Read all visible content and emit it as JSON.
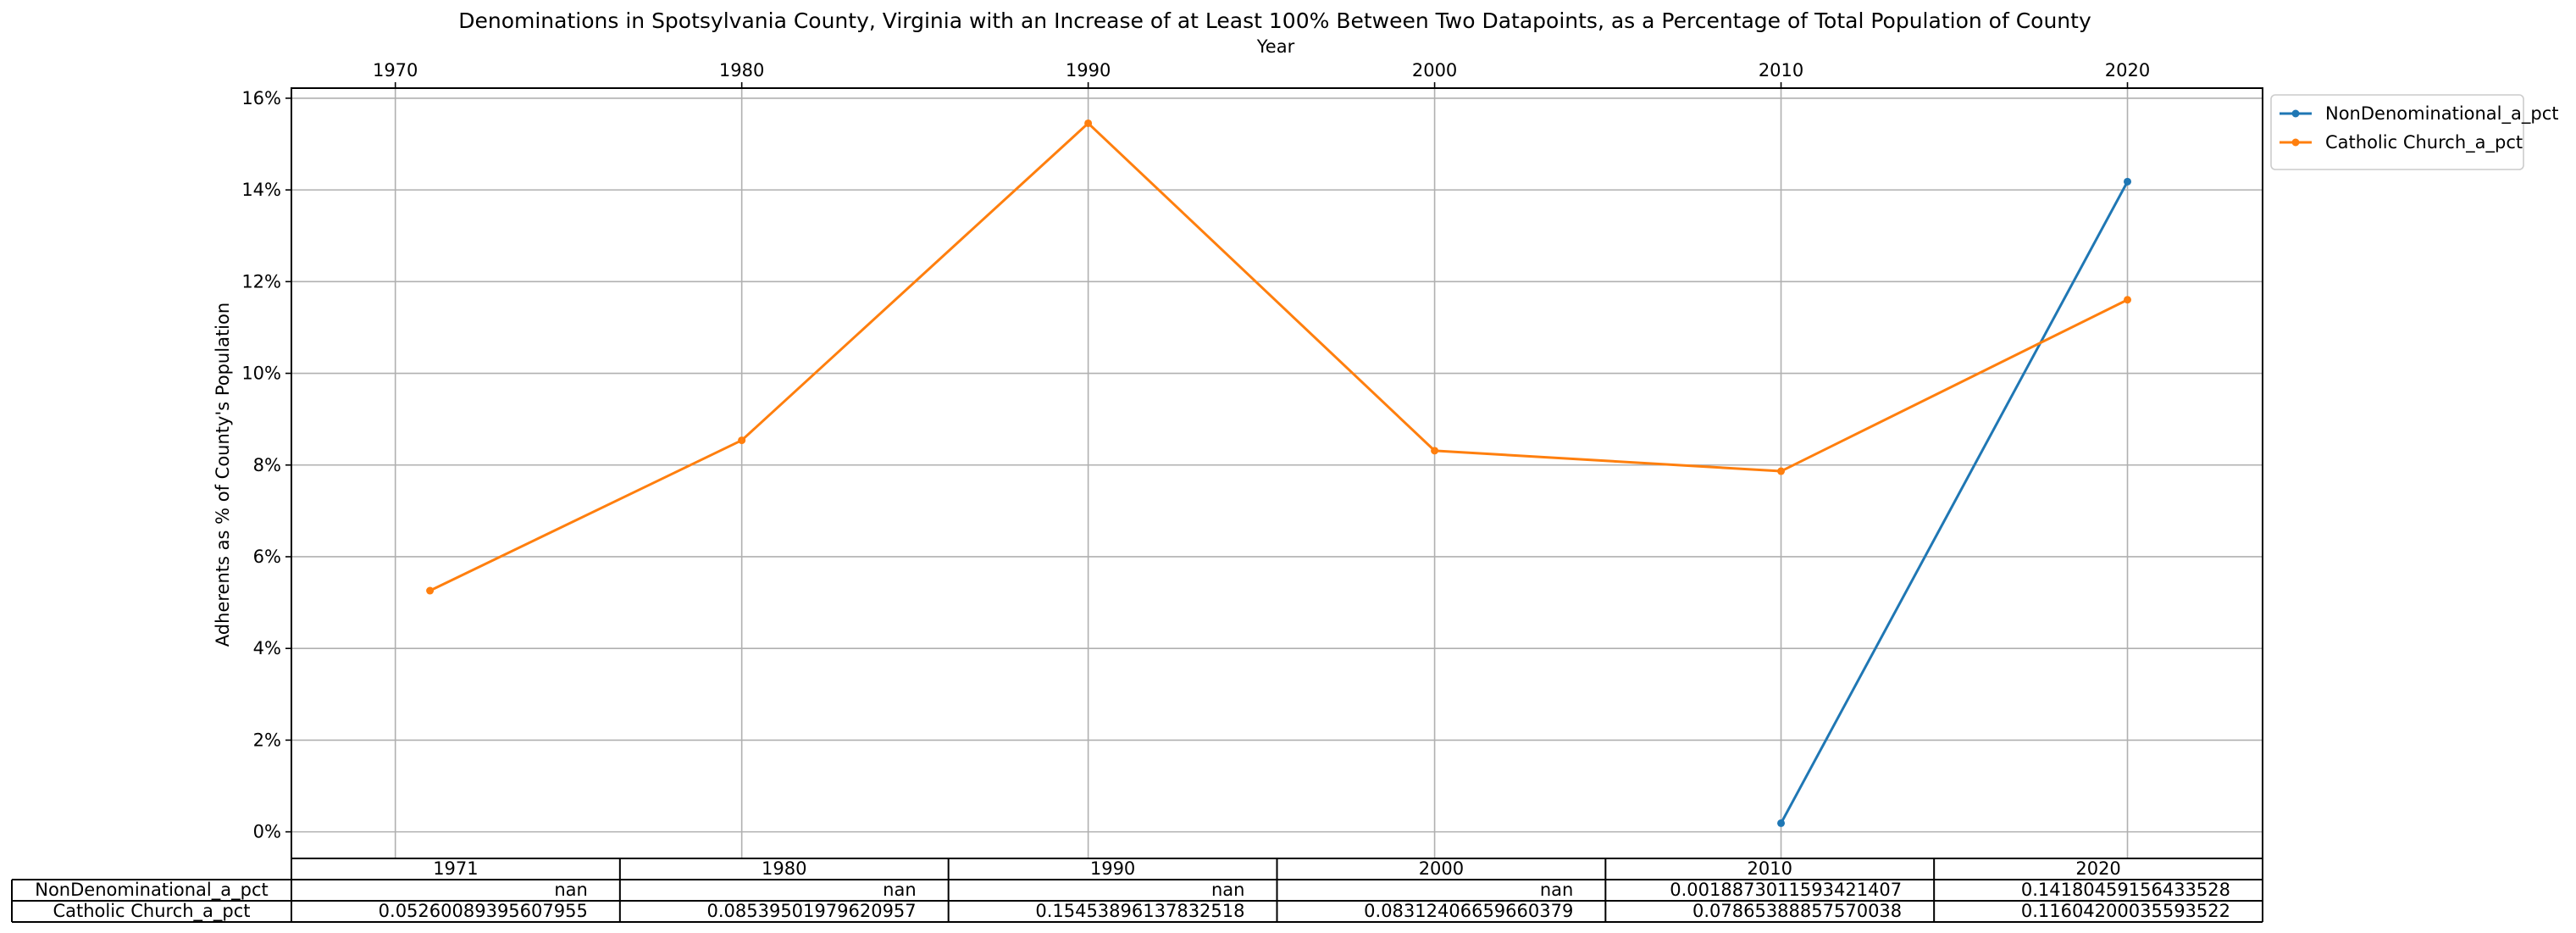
{
  "chart_data": {
    "type": "line",
    "title": "Denominations in Spotsylvania County, Virginia with an Increase of at Least 100% Between Two Datapoints, as a Percentage of Total Population of County",
    "xlabel": "Year",
    "ylabel": "Adherents as % of County's Population",
    "x_ticks": [
      "1970",
      "1980",
      "1990",
      "2000",
      "2010",
      "2020"
    ],
    "y_ticks": [
      "0%",
      "2%",
      "4%",
      "6%",
      "8%",
      "10%",
      "12%",
      "14%",
      "16%"
    ],
    "xlim": [
      1967.0,
      2023.9
    ],
    "ylim": [
      -0.0058,
      0.1622
    ],
    "grid": true,
    "legend_placement": "outside upper right",
    "x": [
      1971,
      1980,
      1990,
      2000,
      2010,
      2020
    ],
    "series": [
      {
        "name": "NonDenominational_a_pct",
        "color": "#1f77b4",
        "values": [
          null,
          null,
          null,
          null,
          0.0018873011593421407,
          0.14180459156433528
        ]
      },
      {
        "name": "Catholic Church_a_pct",
        "color": "#ff7f0e",
        "values": [
          0.05260089395607955,
          0.08539501979620957,
          0.15453896137832518,
          0.08312406659660379,
          0.07865388857570038,
          0.11604200035593522
        ]
      }
    ],
    "table": {
      "col_labels": [
        "1971",
        "1980",
        "1990",
        "2000",
        "2010",
        "2020"
      ],
      "rows": [
        {
          "label": "NonDenominational_a_pct",
          "cells": [
            "nan",
            "nan",
            "nan",
            "nan",
            "0.0018873011593421407",
            "0.14180459156433528"
          ]
        },
        {
          "label": "Catholic Church_a_pct",
          "cells": [
            "0.05260089395607955",
            "0.08539501979620957",
            "0.15453896137832518",
            "0.08312406659660379",
            "0.07865388857570038",
            "0.11604200035593522"
          ]
        }
      ]
    }
  }
}
